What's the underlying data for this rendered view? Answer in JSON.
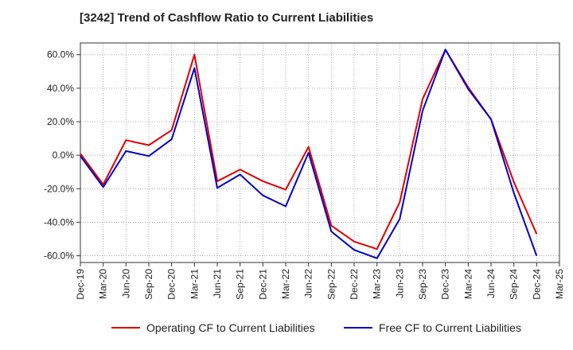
{
  "chart_data": {
    "type": "line",
    "title": "[3242]  Trend of Cashflow Ratio to Current Liabilities",
    "xlabel": "",
    "ylabel": "",
    "ylim": [
      -64,
      67
    ],
    "grid": true,
    "legend_position": "bottom",
    "y_ticks": [
      "60.0%",
      "40.0%",
      "20.0%",
      "0.0%",
      "-20.0%",
      "-40.0%",
      "-60.0%"
    ],
    "y_tick_values": [
      60,
      40,
      20,
      0,
      -20,
      -40,
      -60
    ],
    "x_ticks": [
      "Dec-19",
      "Mar-20",
      "Jun-20",
      "Sep-20",
      "Dec-20",
      "Mar-21",
      "Jun-21",
      "Sep-21",
      "Dec-21",
      "Mar-22",
      "Jun-22",
      "Sep-22",
      "Dec-22",
      "Mar-23",
      "Jun-23",
      "Sep-23",
      "Dec-23",
      "Mar-24",
      "Jun-24",
      "Sep-24",
      "Dec-24",
      "Mar-25"
    ],
    "series": [
      {
        "name": "Operating CF to Current Liabilities",
        "color": "#dd0000",
        "x": [
          "Dec-19",
          "Mar-20",
          "Jun-20",
          "Sep-20",
          "Dec-20",
          "Mar-21",
          "Jun-21",
          "Sep-21",
          "Dec-21",
          "Mar-22",
          "Jun-22",
          "Sep-22",
          "Dec-22",
          "Mar-23",
          "Jun-23",
          "Sep-23",
          "Dec-23",
          "Mar-24",
          "Jun-24",
          "Sep-24",
          "Dec-24"
        ],
        "values": [
          1.0,
          -17.5,
          9.0,
          6.0,
          15.0,
          60.0,
          -15.5,
          -8.5,
          -15.5,
          -20.5,
          5.0,
          -42.0,
          -51.5,
          -56.0,
          -28.0,
          33.5,
          63.0,
          40.5,
          21.5,
          -16.0,
          -47.0
        ]
      },
      {
        "name": "Free CF to Current Liabilities",
        "color": "#0000cc",
        "x": [
          "Dec-19",
          "Mar-20",
          "Jun-20",
          "Sep-20",
          "Dec-20",
          "Mar-21",
          "Jun-21",
          "Sep-21",
          "Dec-21",
          "Mar-22",
          "Jun-22",
          "Sep-22",
          "Dec-22",
          "Mar-23",
          "Jun-23",
          "Sep-23",
          "Dec-23",
          "Mar-24",
          "Jun-24",
          "Sep-24",
          "Dec-24"
        ],
        "values": [
          -0.5,
          -19.0,
          2.5,
          -0.5,
          9.5,
          52.0,
          -19.5,
          -11.5,
          -24.0,
          -30.5,
          1.5,
          -45.5,
          -56.5,
          -61.5,
          -38.0,
          26.5,
          63.0,
          39.5,
          21.5,
          -22.5,
          -60.0
        ]
      }
    ]
  }
}
